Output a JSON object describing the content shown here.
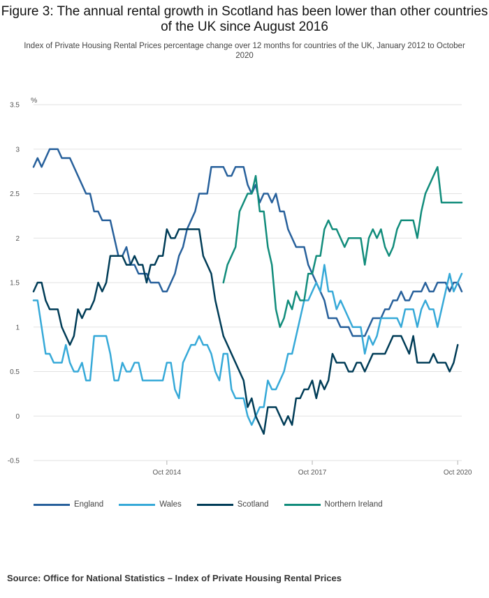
{
  "title": "Figure 3: The annual rental growth in Scotland has been lower than other countries of the UK since August 2016",
  "subtitle": "Index of Private Housing Rental Prices percentage change over 12 months for countries of the UK, January 2012 to October 2020",
  "source": "Source: Office for National Statistics – Index of Private Housing Rental Prices",
  "chart_data": {
    "type": "line",
    "title": "Figure 3: The annual rental growth in Scotland has been lower than other countries of the UK since August 2016",
    "ylabel": "%",
    "xlabel": "",
    "ylim": [
      -0.5,
      3.5
    ],
    "yticks": [
      "3.5",
      "3",
      "2.5",
      "2",
      "1.5",
      "1",
      "0.5",
      "0",
      "-0.5"
    ],
    "ytick_values": [
      3.5,
      3,
      2.5,
      2,
      1.5,
      1,
      0.5,
      0,
      -0.5
    ],
    "x_start": "Jan 2012",
    "x_end": "Oct 2020",
    "x_ticks": [
      {
        "label": "Oct 2014",
        "index": 33
      },
      {
        "label": "Oct 2017",
        "index": 69
      },
      {
        "label": "Oct 2020",
        "index": 105
      }
    ],
    "legend_position": "bottom",
    "series": [
      {
        "name": "England",
        "color": "#27609b",
        "values": [
          2.8,
          2.9,
          2.8,
          2.9,
          3.0,
          3.0,
          3.0,
          2.9,
          2.9,
          2.9,
          2.8,
          2.7,
          2.6,
          2.5,
          2.5,
          2.3,
          2.3,
          2.2,
          2.2,
          2.2,
          2.0,
          1.8,
          1.8,
          1.9,
          1.7,
          1.7,
          1.6,
          1.6,
          1.6,
          1.5,
          1.5,
          1.5,
          1.4,
          1.4,
          1.5,
          1.6,
          1.8,
          1.9,
          2.1,
          2.2,
          2.3,
          2.5,
          2.5,
          2.5,
          2.8,
          2.8,
          2.8,
          2.8,
          2.7,
          2.7,
          2.8,
          2.8,
          2.8,
          2.6,
          2.5,
          2.6,
          2.4,
          2.5,
          2.5,
          2.4,
          2.5,
          2.3,
          2.3,
          2.1,
          2.0,
          1.9,
          1.9,
          1.9,
          1.7,
          1.6,
          1.5,
          1.4,
          1.3,
          1.1,
          1.1,
          1.1,
          1.0,
          1.0,
          1.0,
          0.9,
          0.9,
          0.9,
          0.9,
          1.0,
          1.1,
          1.1,
          1.1,
          1.2,
          1.2,
          1.3,
          1.3,
          1.4,
          1.3,
          1.3,
          1.4,
          1.4,
          1.4,
          1.5,
          1.4,
          1.4,
          1.5,
          1.5,
          1.5,
          1.4,
          1.5,
          1.5,
          1.4
        ]
      },
      {
        "name": "Wales",
        "color": "#36a9d8",
        "values": [
          1.3,
          1.3,
          1.0,
          0.7,
          0.7,
          0.6,
          0.6,
          0.6,
          0.8,
          0.6,
          0.5,
          0.5,
          0.6,
          0.4,
          0.4,
          0.9,
          0.9,
          0.9,
          0.9,
          0.7,
          0.4,
          0.4,
          0.6,
          0.5,
          0.5,
          0.6,
          0.6,
          0.4,
          0.4,
          0.4,
          0.4,
          0.4,
          0.4,
          0.6,
          0.6,
          0.3,
          0.2,
          0.6,
          0.7,
          0.8,
          0.8,
          0.9,
          0.8,
          0.8,
          0.7,
          0.5,
          0.4,
          0.7,
          0.7,
          0.3,
          0.2,
          0.2,
          0.2,
          0.0,
          -0.1,
          0.0,
          0.1,
          0.1,
          0.4,
          0.3,
          0.3,
          0.4,
          0.5,
          0.7,
          0.7,
          0.9,
          1.1,
          1.3,
          1.3,
          1.4,
          1.5,
          1.4,
          1.7,
          1.4,
          1.4,
          1.2,
          1.3,
          1.2,
          1.1,
          1.0,
          1.0,
          1.0,
          0.7,
          0.9,
          0.8,
          0.9,
          1.1,
          1.1,
          1.1,
          1.1,
          1.1,
          1.0,
          1.2,
          1.2,
          1.2,
          1.0,
          1.2,
          1.3,
          1.2,
          1.2,
          1.0,
          1.2,
          1.4,
          1.6,
          1.4,
          1.5,
          1.6
        ]
      },
      {
        "name": "Scotland",
        "color": "#003c57",
        "values": [
          1.4,
          1.5,
          1.5,
          1.3,
          1.2,
          1.2,
          1.2,
          1.0,
          0.9,
          0.8,
          0.9,
          1.2,
          1.1,
          1.2,
          1.2,
          1.3,
          1.5,
          1.4,
          1.5,
          1.8,
          1.8,
          1.8,
          1.8,
          1.7,
          1.7,
          1.8,
          1.7,
          1.7,
          1.5,
          1.7,
          1.7,
          1.8,
          1.8,
          2.1,
          2.0,
          2.0,
          2.1,
          2.1,
          2.1,
          2.1,
          2.1,
          2.1,
          1.8,
          1.7,
          1.6,
          1.3,
          1.1,
          0.9,
          0.8,
          0.7,
          0.6,
          0.5,
          0.4,
          0.1,
          0.2,
          0.0,
          -0.1,
          -0.2,
          0.1,
          0.1,
          0.1,
          0.0,
          -0.1,
          0.0,
          -0.1,
          0.2,
          0.2,
          0.3,
          0.3,
          0.4,
          0.2,
          0.4,
          0.3,
          0.4,
          0.7,
          0.6,
          0.6,
          0.6,
          0.5,
          0.5,
          0.6,
          0.6,
          0.5,
          0.6,
          0.7,
          0.7,
          0.7,
          0.7,
          0.8,
          0.9,
          0.9,
          0.9,
          0.8,
          0.7,
          0.9,
          0.6,
          0.6,
          0.6,
          0.6,
          0.7,
          0.6,
          0.6,
          0.6,
          0.5,
          0.6,
          0.8
        ]
      },
      {
        "name": "Northern Ireland",
        "color": "#118c7b",
        "values": [
          null,
          null,
          null,
          null,
          null,
          null,
          null,
          null,
          null,
          null,
          null,
          null,
          null,
          null,
          null,
          null,
          null,
          null,
          null,
          null,
          null,
          null,
          null,
          null,
          null,
          null,
          null,
          null,
          null,
          null,
          null,
          null,
          null,
          null,
          null,
          null,
          null,
          null,
          null,
          null,
          null,
          null,
          null,
          null,
          null,
          null,
          null,
          1.5,
          1.7,
          1.8,
          1.9,
          2.3,
          2.4,
          2.5,
          2.5,
          2.7,
          2.3,
          2.3,
          1.9,
          1.7,
          1.2,
          1.0,
          1.1,
          1.3,
          1.2,
          1.4,
          1.3,
          1.3,
          1.6,
          1.6,
          1.8,
          1.8,
          2.1,
          2.2,
          2.1,
          2.1,
          2.0,
          1.9,
          2.0,
          2.0,
          2.0,
          2.0,
          1.7,
          2.0,
          2.1,
          2.0,
          2.1,
          1.9,
          1.8,
          1.9,
          2.1,
          2.2,
          2.2,
          2.2,
          2.2,
          2.0,
          2.3,
          2.5,
          2.6,
          2.7,
          2.8,
          2.4,
          2.4,
          2.4,
          2.4,
          2.4,
          2.4
        ]
      }
    ]
  }
}
